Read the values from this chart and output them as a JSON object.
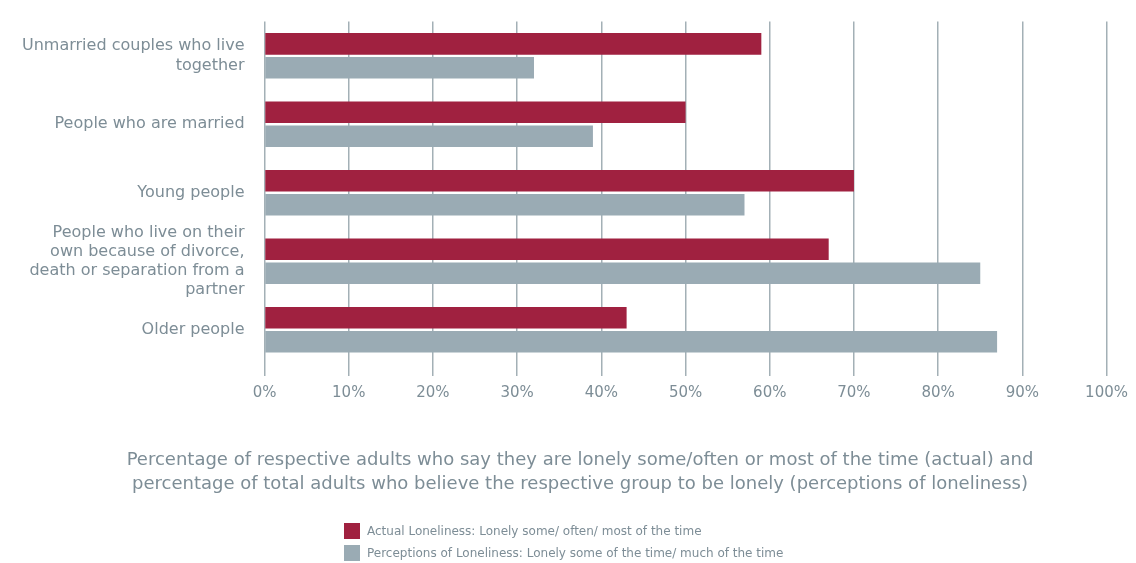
{
  "chart_data": {
    "type": "bar",
    "orientation": "horizontal",
    "xlabel": "Percentage of respective adults who say they are lonely some/often or most of the time (actual) and percentage of total adults who believe the respective group to be lonely (perceptions of loneliness)",
    "categories": [
      "Unmarried couples who live together",
      "People who are married",
      "Young people",
      "People who live on their own because of divorce, death or separation from a partner",
      "Older people"
    ],
    "series": [
      {
        "name": "Actual Loneliness: Lonely some/ often/ most of the time",
        "color": "#a02140",
        "values": [
          59,
          50,
          70,
          67,
          43
        ]
      },
      {
        "name": "Perceptions of Loneliness: Lonely some of the time/ much of the time",
        "color": "#9aabb4",
        "values": [
          32,
          39,
          57,
          85,
          87
        ]
      }
    ],
    "xlim": [
      0,
      100
    ],
    "xticks": [
      {
        "value": 0,
        "label": "0%"
      },
      {
        "value": 10,
        "label": "10%"
      },
      {
        "value": 20,
        "label": "20%"
      },
      {
        "value": 30,
        "label": "30%"
      },
      {
        "value": 40,
        "label": "40%"
      },
      {
        "value": 50,
        "label": "50%"
      },
      {
        "value": 60,
        "label": "60%"
      },
      {
        "value": 70,
        "label": "70%"
      },
      {
        "value": 80,
        "label": "80%"
      },
      {
        "value": 90,
        "label": "90%"
      },
      {
        "value": 100,
        "label": "100%"
      }
    ],
    "grid": "x",
    "legend": "bottom"
  }
}
